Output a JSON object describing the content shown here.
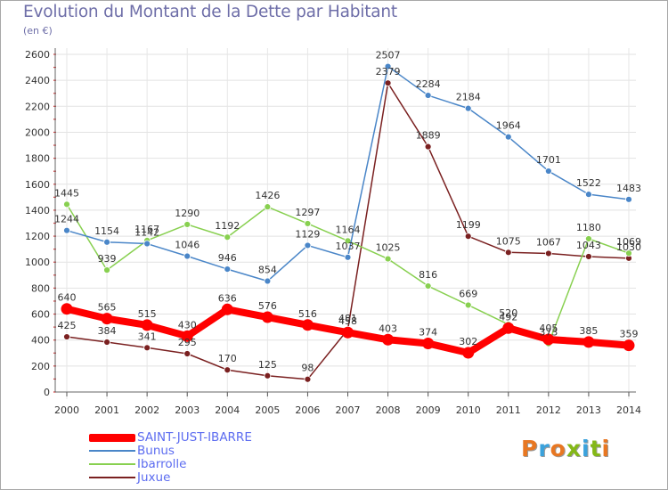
{
  "header": {
    "title": "Evolution du Montant de la Dette par Habitant",
    "unit": "(en €)"
  },
  "logo": {
    "text": "Proxiti",
    "colors": [
      "#e87722",
      "#3ba2dc",
      "#e87722",
      "#84b817",
      "#3ba2dc",
      "#84b817",
      "#e87722"
    ]
  },
  "chart_data": {
    "type": "line",
    "title": "Evolution du Montant de la Dette par Habitant",
    "ylabel": "(en €)",
    "xlabel": "",
    "ylim": [
      0,
      2600
    ],
    "yticks": [
      0,
      200,
      400,
      600,
      800,
      1000,
      1200,
      1400,
      1600,
      1800,
      2000,
      2200,
      2400,
      2600
    ],
    "categories": [
      "2000",
      "2001",
      "2002",
      "2003",
      "2004",
      "2005",
      "2006",
      "2007",
      "2008",
      "2009",
      "2010",
      "2011",
      "2012",
      "2013",
      "2014"
    ],
    "series": [
      {
        "name": "Juxue",
        "color": "#7a2020",
        "values": [
          425,
          384,
          341,
          295,
          170,
          125,
          98,
          481,
          2379,
          1889,
          1199,
          1075,
          1067,
          1043,
          1030
        ]
      },
      {
        "name": "Ibarrolle",
        "color": "#88d050",
        "values": [
          1445,
          939,
          1167,
          1290,
          1192,
          1426,
          1297,
          1164,
          1025,
          816,
          669,
          520,
          373,
          1180,
          1069
        ]
      },
      {
        "name": "Bunus",
        "color": "#4a86c8",
        "values": [
          1244,
          1154,
          1142,
          1046,
          946,
          854,
          1129,
          1037,
          2507,
          2284,
          2184,
          1964,
          1701,
          1522,
          1483
        ]
      },
      {
        "name": "SAINT-JUST-IBARRE",
        "color": "#ff0000",
        "values": [
          640,
          565,
          515,
          430,
          636,
          576,
          516,
          458,
          403,
          374,
          302,
          492,
          405,
          385,
          359
        ]
      }
    ],
    "legend": {
      "position": "bottom-left",
      "order": [
        "SAINT-JUST-IBARRE",
        "Bunus",
        "Ibarrolle",
        "Juxue"
      ]
    }
  }
}
